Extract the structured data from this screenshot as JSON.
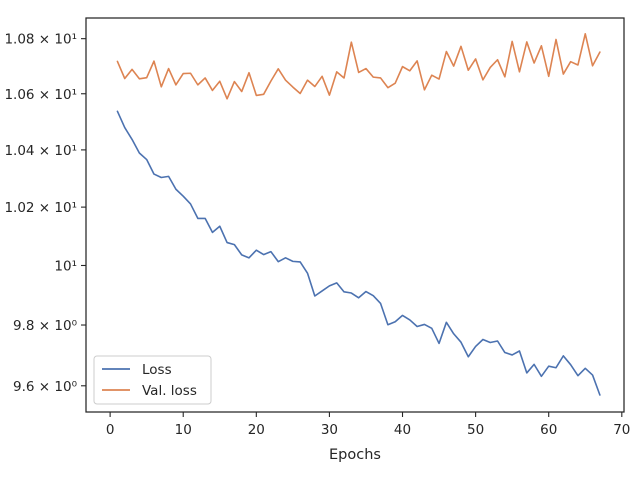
{
  "chart_data": {
    "type": "line",
    "title": "",
    "xlabel": "Epochs",
    "ylabel": "",
    "yscale": "log",
    "xlim": [
      -3.3,
      70.3
    ],
    "ylim": [
      9.515,
      10.876
    ],
    "grid": false,
    "legend_position": "lower-left",
    "x_ticks": [
      {
        "value": 0,
        "label": "0"
      },
      {
        "value": 10,
        "label": "10"
      },
      {
        "value": 20,
        "label": "20"
      },
      {
        "value": 30,
        "label": "30"
      },
      {
        "value": 40,
        "label": "40"
      },
      {
        "value": 50,
        "label": "50"
      },
      {
        "value": 60,
        "label": "60"
      },
      {
        "value": 70,
        "label": "70"
      }
    ],
    "y_ticks": [
      {
        "value": 9.6,
        "label": "9.6 × 10⁰"
      },
      {
        "value": 9.8,
        "label": "9.8 × 10⁰"
      },
      {
        "value": 10.0,
        "label": "10¹"
      },
      {
        "value": 10.2,
        "label": "1.02 × 10¹"
      },
      {
        "value": 10.4,
        "label": "1.04 × 10¹"
      },
      {
        "value": 10.6,
        "label": "1.06 × 10¹"
      },
      {
        "value": 10.8,
        "label": "1.08 × 10¹"
      }
    ],
    "x": [
      1,
      2,
      3,
      4,
      5,
      6,
      7,
      8,
      9,
      10,
      11,
      12,
      13,
      14,
      15,
      16,
      17,
      18,
      19,
      20,
      21,
      22,
      23,
      24,
      25,
      26,
      27,
      28,
      29,
      30,
      31,
      32,
      33,
      34,
      35,
      36,
      37,
      38,
      39,
      40,
      41,
      42,
      43,
      44,
      45,
      46,
      47,
      48,
      49,
      50,
      51,
      52,
      53,
      54,
      55,
      56,
      57,
      58,
      59,
      60,
      61,
      62,
      63,
      64,
      65,
      66,
      67
    ],
    "series": [
      {
        "name": "Loss",
        "color": "#4c72b0",
        "values": [
          10.537,
          10.479,
          10.437,
          10.389,
          10.366,
          10.315,
          10.303,
          10.307,
          10.262,
          10.238,
          10.211,
          10.161,
          10.161,
          10.113,
          10.134,
          10.078,
          10.071,
          10.036,
          10.026,
          10.052,
          10.037,
          10.047,
          10.013,
          10.026,
          10.014,
          10.012,
          9.974,
          9.897,
          9.914,
          9.931,
          9.941,
          9.911,
          9.907,
          9.891,
          9.912,
          9.898,
          9.872,
          9.801,
          9.811,
          9.832,
          9.817,
          9.795,
          9.802,
          9.789,
          9.739,
          9.809,
          9.771,
          9.743,
          9.695,
          9.729,
          9.752,
          9.742,
          9.747,
          9.709,
          9.701,
          9.714,
          9.642,
          9.67,
          9.631,
          9.664,
          9.659,
          9.698,
          9.669,
          9.633,
          9.657,
          9.635,
          9.57
        ]
      },
      {
        "name": "Val. loss",
        "color": "#dd8452",
        "values": [
          10.717,
          10.655,
          10.688,
          10.654,
          10.658,
          10.718,
          10.625,
          10.691,
          10.632,
          10.673,
          10.674,
          10.632,
          10.657,
          10.612,
          10.645,
          10.582,
          10.644,
          10.608,
          10.676,
          10.594,
          10.598,
          10.646,
          10.69,
          10.649,
          10.624,
          10.601,
          10.649,
          10.626,
          10.663,
          10.595,
          10.679,
          10.657,
          10.787,
          10.677,
          10.691,
          10.66,
          10.657,
          10.622,
          10.638,
          10.698,
          10.683,
          10.719,
          10.614,
          10.667,
          10.653,
          10.753,
          10.7,
          10.772,
          10.685,
          10.726,
          10.65,
          10.695,
          10.723,
          10.661,
          10.79,
          10.679,
          10.788,
          10.711,
          10.774,
          10.663,
          10.797,
          10.671,
          10.716,
          10.704,
          10.818,
          10.701,
          10.751
        ]
      }
    ]
  }
}
